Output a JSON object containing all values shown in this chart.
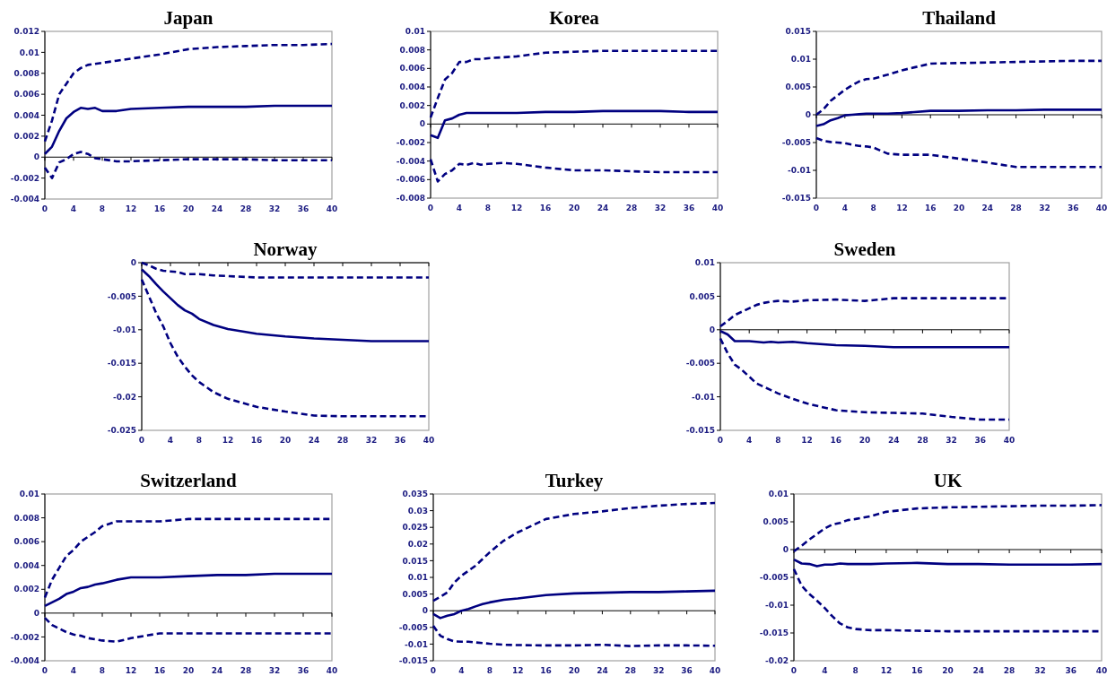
{
  "chart_data": [
    {
      "type": "line",
      "title": "Japan",
      "x": [
        0,
        1,
        2,
        3,
        4,
        5,
        6,
        7,
        8,
        10,
        12,
        16,
        20,
        24,
        28,
        32,
        36,
        40
      ],
      "xlim": [
        0,
        40
      ],
      "xticks": [
        0,
        4,
        8,
        12,
        16,
        20,
        24,
        28,
        32,
        36,
        40
      ],
      "ylim": [
        -0.004,
        0.012
      ],
      "yticks": [
        -0.004,
        -0.002,
        0,
        0.002,
        0.004,
        0.006,
        0.008,
        0.01,
        0.012
      ],
      "series": [
        {
          "color": "#000080",
          "line_style": "dashed",
          "values": [
            0.0015,
            0.0035,
            0.006,
            0.007,
            0.008,
            0.0085,
            0.0088,
            0.0089,
            0.009,
            0.0092,
            0.0094,
            0.0098,
            0.0103,
            0.0105,
            0.0106,
            0.0107,
            0.0107,
            0.0108
          ]
        },
        {
          "color": "#000080",
          "line_style": "solid",
          "values": [
            0.0003,
            0.001,
            0.0025,
            0.0037,
            0.0043,
            0.0047,
            0.0046,
            0.0047,
            0.0044,
            0.0044,
            0.0046,
            0.0047,
            0.0048,
            0.0048,
            0.0048,
            0.0049,
            0.0049,
            0.0049
          ]
        },
        {
          "color": "#000080",
          "line_style": "dashed",
          "values": [
            -0.001,
            -0.002,
            -0.0005,
            -0.0002,
            0.0003,
            0.0005,
            0.0003,
            -0.0001,
            -0.0002,
            -0.0004,
            -0.0004,
            -0.0003,
            -0.0002,
            -0.0002,
            -0.0002,
            -0.0003,
            -0.0003,
            -0.0003
          ]
        }
      ]
    },
    {
      "type": "line",
      "title": "Korea",
      "x": [
        0,
        1,
        2,
        3,
        4,
        5,
        6,
        7,
        8,
        10,
        12,
        16,
        20,
        24,
        28,
        32,
        36,
        40
      ],
      "xlim": [
        0,
        40
      ],
      "xticks": [
        0,
        4,
        8,
        12,
        16,
        20,
        24,
        28,
        32,
        36,
        40
      ],
      "ylim": [
        -0.008,
        0.01
      ],
      "yticks": [
        -0.008,
        -0.006,
        -0.004,
        -0.002,
        0,
        0.002,
        0.004,
        0.006,
        0.008,
        0.01
      ],
      "series": [
        {
          "color": "#000080",
          "line_style": "dashed",
          "values": [
            0.0007,
            0.0028,
            0.0048,
            0.0055,
            0.0067,
            0.0067,
            0.007,
            0.007,
            0.0071,
            0.0072,
            0.0073,
            0.0077,
            0.0078,
            0.0079,
            0.0079,
            0.0079,
            0.0079,
            0.0079
          ]
        },
        {
          "color": "#000080",
          "line_style": "solid",
          "values": [
            -0.0012,
            -0.0015,
            0.0004,
            0.0006,
            0.001,
            0.0012,
            0.0012,
            0.0012,
            0.0012,
            0.0012,
            0.0012,
            0.0013,
            0.0013,
            0.0014,
            0.0014,
            0.0014,
            0.0013,
            0.0013
          ]
        },
        {
          "color": "#000080",
          "line_style": "dashed",
          "values": [
            -0.0038,
            -0.0062,
            -0.0054,
            -0.005,
            -0.0043,
            -0.0044,
            -0.0042,
            -0.0044,
            -0.0043,
            -0.0042,
            -0.0043,
            -0.0047,
            -0.005,
            -0.005,
            -0.0051,
            -0.0052,
            -0.0052,
            -0.0052
          ]
        }
      ]
    },
    {
      "type": "line",
      "title": "Thailand",
      "x": [
        0,
        1,
        2,
        3,
        4,
        5,
        6,
        7,
        8,
        10,
        12,
        16,
        20,
        24,
        28,
        32,
        36,
        40
      ],
      "xlim": [
        0,
        40
      ],
      "xticks": [
        0,
        4,
        8,
        12,
        16,
        20,
        24,
        28,
        32,
        36,
        40
      ],
      "ylim": [
        -0.015,
        0.015
      ],
      "yticks": [
        -0.015,
        -0.01,
        -0.005,
        0,
        0.005,
        0.01,
        0.015
      ],
      "series": [
        {
          "color": "#000080",
          "line_style": "dashed",
          "values": [
            0,
            0.001,
            0.0025,
            0.0035,
            0.0045,
            0.0053,
            0.006,
            0.0064,
            0.0065,
            0.0072,
            0.008,
            0.0092,
            0.0093,
            0.0094,
            0.0095,
            0.0096,
            0.0097,
            0.0097
          ]
        },
        {
          "color": "#000080",
          "line_style": "solid",
          "values": [
            -0.002,
            -0.0017,
            -0.001,
            -0.0006,
            -0.0001,
            0,
            0.0001,
            0.0002,
            0.0002,
            0.0002,
            0.0003,
            0.0007,
            0.0007,
            0.0008,
            0.0008,
            0.0009,
            0.0009,
            0.0009
          ]
        },
        {
          "color": "#000080",
          "line_style": "dashed",
          "values": [
            -0.0042,
            -0.0047,
            -0.0049,
            -0.005,
            -0.0051,
            -0.0054,
            -0.0056,
            -0.0057,
            -0.0059,
            -0.007,
            -0.0072,
            -0.0072,
            -0.0079,
            -0.0086,
            -0.0094,
            -0.0094,
            -0.0094,
            -0.0094
          ]
        }
      ]
    },
    {
      "type": "line",
      "title": "Norway",
      "x": [
        0,
        1,
        2,
        3,
        4,
        5,
        6,
        7,
        8,
        10,
        12,
        16,
        20,
        24,
        28,
        32,
        36,
        40
      ],
      "xlim": [
        0,
        40
      ],
      "xticks": [
        0,
        4,
        8,
        12,
        16,
        20,
        24,
        28,
        32,
        36,
        40
      ],
      "ylim": [
        -0.025,
        0
      ],
      "yticks": [
        -0.025,
        -0.02,
        -0.015,
        -0.01,
        -0.005,
        0
      ],
      "series": [
        {
          "color": "#000080",
          "line_style": "dashed",
          "values": [
            0,
            -0.0004,
            -0.0009,
            -0.0012,
            -0.0013,
            -0.0014,
            -0.0017,
            -0.0017,
            -0.0017,
            -0.0019,
            -0.002,
            -0.0022,
            -0.0022,
            -0.0022,
            -0.0022,
            -0.0022,
            -0.0022,
            -0.0022
          ]
        },
        {
          "color": "#000080",
          "line_style": "solid",
          "values": [
            -0.001,
            -0.002,
            -0.0032,
            -0.0043,
            -0.0053,
            -0.0063,
            -0.0071,
            -0.0076,
            -0.0084,
            -0.0093,
            -0.0099,
            -0.0106,
            -0.011,
            -0.0113,
            -0.0115,
            -0.0117,
            -0.0117,
            -0.0117
          ]
        },
        {
          "color": "#000080",
          "line_style": "dashed",
          "values": [
            -0.0025,
            -0.005,
            -0.0075,
            -0.0095,
            -0.012,
            -0.014,
            -0.0155,
            -0.0168,
            -0.0178,
            -0.0193,
            -0.0203,
            -0.0215,
            -0.0222,
            -0.0228,
            -0.0229,
            -0.0229,
            -0.0229,
            -0.0229
          ]
        }
      ]
    },
    {
      "type": "line",
      "title": "Sweden",
      "x": [
        0,
        1,
        2,
        3,
        4,
        5,
        6,
        7,
        8,
        10,
        12,
        16,
        20,
        24,
        28,
        32,
        36,
        40
      ],
      "xlim": [
        0,
        40
      ],
      "xticks": [
        0,
        4,
        8,
        12,
        16,
        20,
        24,
        28,
        32,
        36,
        40
      ],
      "ylim": [
        -0.015,
        0.01
      ],
      "yticks": [
        -0.015,
        -0.01,
        -0.005,
        0,
        0.005,
        0.01
      ],
      "series": [
        {
          "color": "#000080",
          "line_style": "dashed",
          "values": [
            0.0005,
            0.0013,
            0.0022,
            0.0027,
            0.0032,
            0.0037,
            0.004,
            0.0042,
            0.0043,
            0.0042,
            0.0044,
            0.0045,
            0.0043,
            0.0047,
            0.0047,
            0.0047,
            0.0047,
            0.0047
          ]
        },
        {
          "color": "#000080",
          "line_style": "solid",
          "values": [
            -0.0002,
            -0.0007,
            -0.0017,
            -0.0017,
            -0.0017,
            -0.0018,
            -0.0019,
            -0.0018,
            -0.0019,
            -0.0018,
            -0.002,
            -0.0023,
            -0.0024,
            -0.0026,
            -0.0026,
            -0.0026,
            -0.0026,
            -0.0026
          ]
        },
        {
          "color": "#000080",
          "line_style": "dashed",
          "values": [
            -0.0013,
            -0.0035,
            -0.0052,
            -0.006,
            -0.007,
            -0.008,
            -0.0085,
            -0.009,
            -0.0095,
            -0.0103,
            -0.011,
            -0.012,
            -0.0123,
            -0.0124,
            -0.0125,
            -0.013,
            -0.0134,
            -0.0134
          ]
        }
      ]
    },
    {
      "type": "line",
      "title": "Switzerland",
      "x": [
        0,
        1,
        2,
        3,
        4,
        5,
        6,
        7,
        8,
        10,
        12,
        16,
        20,
        24,
        28,
        32,
        36,
        40
      ],
      "xlim": [
        0,
        40
      ],
      "xticks": [
        0,
        4,
        8,
        12,
        16,
        20,
        24,
        28,
        32,
        36,
        40
      ],
      "ylim": [
        -0.004,
        0.01
      ],
      "yticks": [
        -0.004,
        -0.002,
        0,
        0.002,
        0.004,
        0.006,
        0.008,
        0.01
      ],
      "series": [
        {
          "color": "#000080",
          "line_style": "dashed",
          "values": [
            0.0013,
            0.0028,
            0.0038,
            0.0048,
            0.0053,
            0.006,
            0.0064,
            0.0068,
            0.0073,
            0.0077,
            0.0077,
            0.0077,
            0.0079,
            0.0079,
            0.0079,
            0.0079,
            0.0079,
            0.0079
          ]
        },
        {
          "color": "#000080",
          "line_style": "solid",
          "values": [
            0.0006,
            0.0009,
            0.0012,
            0.0016,
            0.0018,
            0.0021,
            0.0022,
            0.0024,
            0.0025,
            0.0028,
            0.003,
            0.003,
            0.0031,
            0.0032,
            0.0032,
            0.0033,
            0.0033,
            0.0033
          ]
        },
        {
          "color": "#000080",
          "line_style": "dashed",
          "values": [
            -0.0004,
            -0.001,
            -0.0013,
            -0.0016,
            -0.0018,
            -0.0019,
            -0.0021,
            -0.0022,
            -0.0023,
            -0.0024,
            -0.0021,
            -0.0017,
            -0.0017,
            -0.0017,
            -0.0017,
            -0.0017,
            -0.0017,
            -0.0017
          ]
        }
      ]
    },
    {
      "type": "line",
      "title": "Turkey",
      "x": [
        0,
        1,
        2,
        3,
        4,
        5,
        6,
        7,
        8,
        10,
        12,
        16,
        20,
        24,
        28,
        32,
        36,
        40
      ],
      "xlim": [
        0,
        40
      ],
      "xticks": [
        0,
        4,
        8,
        12,
        16,
        20,
        24,
        28,
        32,
        36,
        40
      ],
      "ylim": [
        -0.015,
        0.035
      ],
      "yticks": [
        -0.015,
        -0.01,
        -0.005,
        0,
        0.005,
        0.01,
        0.015,
        0.02,
        0.025,
        0.03,
        0.035
      ],
      "series": [
        {
          "color": "#000080",
          "line_style": "dashed",
          "values": [
            0.003,
            0.0042,
            0.0055,
            0.0085,
            0.0105,
            0.012,
            0.0135,
            0.0155,
            0.0175,
            0.021,
            0.0235,
            0.0275,
            0.029,
            0.0298,
            0.0308,
            0.0315,
            0.032,
            0.0323
          ]
        },
        {
          "color": "#000080",
          "line_style": "solid",
          "values": [
            -0.001,
            -0.0022,
            -0.0015,
            -0.001,
            0,
            0.0005,
            0.0013,
            0.002,
            0.0025,
            0.0033,
            0.0037,
            0.0047,
            0.0052,
            0.0054,
            0.0056,
            0.0056,
            0.0058,
            0.006
          ]
        },
        {
          "color": "#000080",
          "line_style": "dashed",
          "values": [
            -0.0045,
            -0.0075,
            -0.0085,
            -0.0092,
            -0.0093,
            -0.0093,
            -0.0095,
            -0.0097,
            -0.0099,
            -0.0102,
            -0.0103,
            -0.0104,
            -0.0104,
            -0.0102,
            -0.0106,
            -0.0104,
            -0.0104,
            -0.0105
          ]
        }
      ]
    },
    {
      "type": "line",
      "title": "UK",
      "x": [
        0,
        1,
        2,
        3,
        4,
        5,
        6,
        7,
        8,
        10,
        12,
        16,
        20,
        24,
        28,
        32,
        36,
        40
      ],
      "xlim": [
        0,
        40
      ],
      "xticks": [
        0,
        4,
        8,
        12,
        16,
        20,
        24,
        28,
        32,
        36,
        40
      ],
      "ylim": [
        -0.02,
        0.01
      ],
      "yticks": [
        -0.02,
        -0.015,
        -0.01,
        -0.005,
        0,
        0.005,
        0.01
      ],
      "series": [
        {
          "color": "#000080",
          "line_style": "dashed",
          "values": [
            -0.0003,
            0.0007,
            0.0018,
            0.0028,
            0.0038,
            0.0045,
            0.0048,
            0.0053,
            0.0055,
            0.006,
            0.0068,
            0.0074,
            0.0076,
            0.0077,
            0.0078,
            0.0079,
            0.0079,
            0.008
          ]
        },
        {
          "color": "#000080",
          "line_style": "solid",
          "values": [
            -0.0018,
            -0.0025,
            -0.0026,
            -0.003,
            -0.0027,
            -0.0027,
            -0.0025,
            -0.0026,
            -0.0026,
            -0.0026,
            -0.0025,
            -0.0024,
            -0.0026,
            -0.0026,
            -0.0027,
            -0.0027,
            -0.0027,
            -0.0026
          ]
        },
        {
          "color": "#000080",
          "line_style": "dashed",
          "values": [
            -0.0035,
            -0.0065,
            -0.008,
            -0.0092,
            -0.0105,
            -0.012,
            -0.0133,
            -0.014,
            -0.0143,
            -0.0145,
            -0.0145,
            -0.0146,
            -0.0147,
            -0.0147,
            -0.0147,
            -0.0147,
            -0.0147,
            -0.0147
          ]
        }
      ]
    }
  ]
}
